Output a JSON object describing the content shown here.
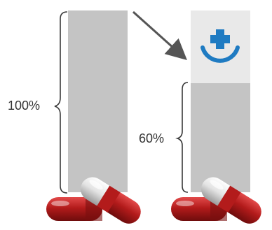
{
  "left_bar": {
    "label": "100%",
    "fraction": 1.0
  },
  "right_bar": {
    "label": "60%",
    "fraction": 0.6
  },
  "icon": {
    "name": "plus-smile-icon"
  },
  "colors": {
    "bar_gray": "#c4c4c4",
    "icon_box": "#e9e9e9",
    "icon_blue": "#1f7bc2",
    "arrow": "#555555",
    "brace": "#3a3a3a",
    "capsule_red": "#b31b1b",
    "capsule_white": "#e8e8e8",
    "text": "#333333"
  }
}
